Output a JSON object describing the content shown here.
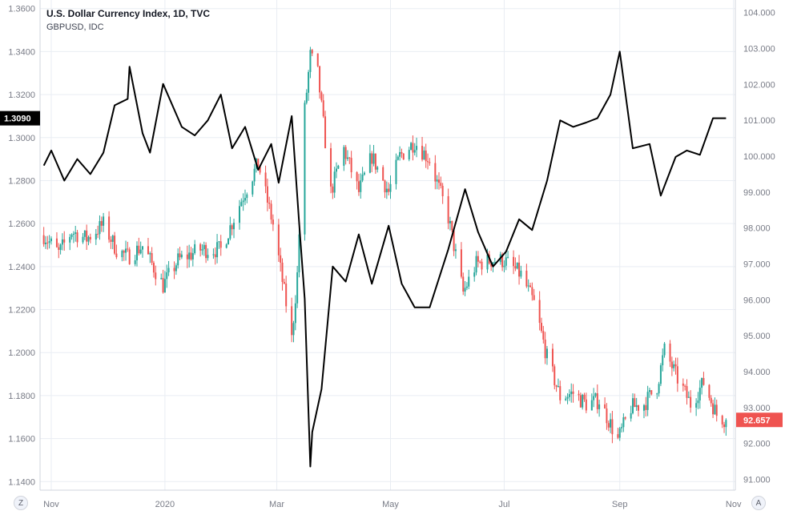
{
  "legend": {
    "title": "U.S. Dollar Currency Index, 1D, TVC",
    "subtitle": "GBPUSD, IDC"
  },
  "controls": {
    "left": "Z",
    "right": "A"
  },
  "colors": {
    "up": "#26a69a",
    "down": "#ef5350",
    "line": "#000000",
    "grid": "#e9edf3",
    "axis": "#787b86",
    "last_right_bg": "#ef5350",
    "last_left_bg": "#000000"
  },
  "chart_data": {
    "type": "candlestick+line",
    "x_labels": [
      {
        "label": "Nov",
        "date": "2019-11-01"
      },
      {
        "label": "2020",
        "date": "2020-01-01"
      },
      {
        "label": "Mar",
        "date": "2020-03-01"
      },
      {
        "label": "May",
        "date": "2020-05-01"
      },
      {
        "label": "Jul",
        "date": "2020-07-01"
      },
      {
        "label": "Sep",
        "date": "2020-09-01"
      },
      {
        "label": "Nov",
        "date": "2020-11-01"
      }
    ],
    "x_range": [
      "2019-10-26",
      "2020-11-02"
    ],
    "left_axis": {
      "series": "GBPUSD, IDC",
      "range": [
        1.136,
        1.364
      ],
      "ticks": [
        "1.1400",
        "1.1600",
        "1.1800",
        "1.2000",
        "1.2200",
        "1.2400",
        "1.2600",
        "1.2800",
        "1.3000",
        "1.3200",
        "1.3400",
        "1.3600"
      ],
      "last_value": "1.3090"
    },
    "right_axis": {
      "series": "U.S. Dollar Currency Index, 1D, TVC",
      "range": [
        90.7,
        104.35
      ],
      "ticks": [
        "91.000",
        "92.000",
        "93.000",
        "94.000",
        "95.000",
        "96.000",
        "97.000",
        "98.000",
        "99.000",
        "100.000",
        "101.000",
        "102.000",
        "103.000",
        "104.000"
      ],
      "last_value": "92.657"
    },
    "dxy_candles_close_path": [
      [
        "2019-10-28",
        97.8
      ],
      [
        "2019-11-05",
        97.3
      ],
      [
        "2019-11-12",
        97.9
      ],
      [
        "2019-11-20",
        97.7
      ],
      [
        "2019-11-29",
        98.1
      ],
      [
        "2019-12-06",
        97.4
      ],
      [
        "2019-12-12",
        97.2
      ],
      [
        "2019-12-20",
        97.5
      ],
      [
        "2019-12-31",
        96.4
      ],
      [
        "2020-01-08",
        97.1
      ],
      [
        "2020-01-20",
        97.4
      ],
      [
        "2020-01-31",
        97.4
      ],
      [
        "2020-02-12",
        98.9
      ],
      [
        "2020-02-20",
        99.8
      ],
      [
        "2020-02-28",
        98.1
      ],
      [
        "2020-03-06",
        95.9
      ],
      [
        "2020-03-09",
        94.9
      ],
      [
        "2020-03-12",
        96.7
      ],
      [
        "2020-03-16",
        101.3
      ],
      [
        "2020-03-19",
        102.8
      ],
      [
        "2020-03-23",
        102.3
      ],
      [
        "2020-03-30",
        99.0
      ],
      [
        "2020-04-06",
        100.2
      ],
      [
        "2020-04-14",
        99.0
      ],
      [
        "2020-04-21",
        100.0
      ],
      [
        "2020-04-30",
        99.0
      ],
      [
        "2020-05-06",
        100.0
      ],
      [
        "2020-05-14",
        100.4
      ],
      [
        "2020-05-22",
        99.9
      ],
      [
        "2020-06-01",
        98.3
      ],
      [
        "2020-06-09",
        96.2
      ],
      [
        "2020-06-16",
        97.0
      ],
      [
        "2020-06-24",
        97.1
      ],
      [
        "2020-07-01",
        97.1
      ],
      [
        "2020-07-10",
        96.7
      ],
      [
        "2020-07-17",
        95.9
      ],
      [
        "2020-07-24",
        94.4
      ],
      [
        "2020-07-31",
        93.3
      ],
      [
        "2020-08-07",
        93.4
      ],
      [
        "2020-08-14",
        93.1
      ],
      [
        "2020-08-21",
        93.2
      ],
      [
        "2020-08-31",
        92.1
      ],
      [
        "2020-09-07",
        93.0
      ],
      [
        "2020-09-14",
        93.1
      ],
      [
        "2020-09-21",
        93.6
      ],
      [
        "2020-09-25",
        94.6
      ],
      [
        "2020-10-02",
        93.8
      ],
      [
        "2020-10-09",
        93.1
      ],
      [
        "2020-10-16",
        93.7
      ],
      [
        "2020-10-23",
        92.8
      ],
      [
        "2020-10-28",
        92.657
      ]
    ],
    "gbpusd_line": [
      [
        "2019-10-28",
        1.287
      ],
      [
        "2019-11-01",
        1.294
      ],
      [
        "2019-11-08",
        1.28
      ],
      [
        "2019-11-15",
        1.29
      ],
      [
        "2019-11-22",
        1.283
      ],
      [
        "2019-11-29",
        1.293
      ],
      [
        "2019-12-05",
        1.315
      ],
      [
        "2019-12-12",
        1.318
      ],
      [
        "2019-12-13",
        1.333
      ],
      [
        "2019-12-20",
        1.302
      ],
      [
        "2019-12-24",
        1.293
      ],
      [
        "2019-12-31",
        1.325
      ],
      [
        "2020-01-10",
        1.305
      ],
      [
        "2020-01-17",
        1.301
      ],
      [
        "2020-01-24",
        1.308
      ],
      [
        "2020-01-31",
        1.32
      ],
      [
        "2020-02-06",
        1.295
      ],
      [
        "2020-02-13",
        1.305
      ],
      [
        "2020-02-20",
        1.285
      ],
      [
        "2020-02-27",
        1.297
      ],
      [
        "2020-03-02",
        1.279
      ],
      [
        "2020-03-09",
        1.31
      ],
      [
        "2020-03-13",
        1.26
      ],
      [
        "2020-03-16",
        1.225
      ],
      [
        "2020-03-19",
        1.147
      ],
      [
        "2020-03-20",
        1.163
      ],
      [
        "2020-03-25",
        1.183
      ],
      [
        "2020-03-31",
        1.24
      ],
      [
        "2020-04-07",
        1.233
      ],
      [
        "2020-04-14",
        1.255
      ],
      [
        "2020-04-21",
        1.232
      ],
      [
        "2020-04-30",
        1.259
      ],
      [
        "2020-05-07",
        1.232
      ],
      [
        "2020-05-14",
        1.221
      ],
      [
        "2020-05-22",
        1.221
      ],
      [
        "2020-06-01",
        1.248
      ],
      [
        "2020-06-10",
        1.276
      ],
      [
        "2020-06-17",
        1.256
      ],
      [
        "2020-06-25",
        1.24
      ],
      [
        "2020-07-02",
        1.247
      ],
      [
        "2020-07-09",
        1.262
      ],
      [
        "2020-07-16",
        1.257
      ],
      [
        "2020-07-24",
        1.28
      ],
      [
        "2020-07-31",
        1.308
      ],
      [
        "2020-08-07",
        1.305
      ],
      [
        "2020-08-14",
        1.307
      ],
      [
        "2020-08-20",
        1.309
      ],
      [
        "2020-08-27",
        1.32
      ],
      [
        "2020-09-01",
        1.34
      ],
      [
        "2020-09-08",
        1.295
      ],
      [
        "2020-09-17",
        1.297
      ],
      [
        "2020-09-23",
        1.273
      ],
      [
        "2020-10-01",
        1.291
      ],
      [
        "2020-10-07",
        1.294
      ],
      [
        "2020-10-14",
        1.292
      ],
      [
        "2020-10-21",
        1.309
      ],
      [
        "2020-10-28",
        1.309
      ]
    ]
  }
}
